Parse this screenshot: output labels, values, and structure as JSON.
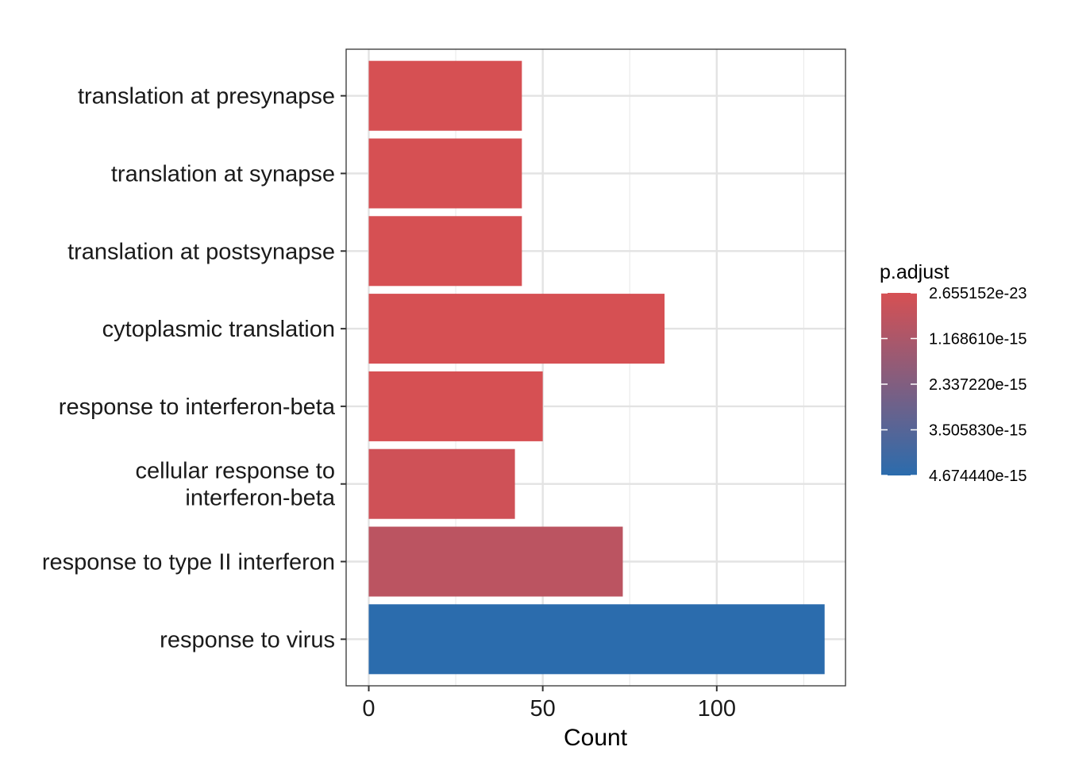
{
  "chart_data": {
    "type": "bar",
    "orientation": "horizontal",
    "title": "",
    "xlabel": "Count",
    "ylabel": "",
    "xlim": [
      -6.5,
      137
    ],
    "xticks": [
      0,
      50,
      100
    ],
    "xtick_labels": [
      "0",
      "50",
      "100"
    ],
    "grid": true,
    "categories": [
      "translation at presynapse",
      "translation at synapse",
      "translation at postsynapse",
      "cytoplasmic translation",
      "response to interferon-beta",
      "cellular response to\ninterferon-beta",
      "response to type II interferon",
      "response to virus"
    ],
    "values": [
      44,
      44,
      44,
      85,
      50,
      42,
      73,
      131
    ],
    "p_adjust": [
      2.655152e-23,
      2.655152e-23,
      2.655152e-23,
      2.655152e-23,
      1e-17,
      2e-16,
      7.5e-16,
      4.67444e-15
    ],
    "legend": {
      "title": "p.adjust",
      "placement": "right",
      "labels": [
        "2.655152e-23",
        "1.168610e-15",
        "2.337220e-15",
        "3.505830e-15",
        "4.674440e-15"
      ],
      "label_values": [
        2.655152e-23,
        1.16861e-15,
        2.33722e-15,
        3.50583e-15,
        4.67444e-15
      ],
      "color_low": "#d65053",
      "color_high": "#2b6cad"
    }
  }
}
